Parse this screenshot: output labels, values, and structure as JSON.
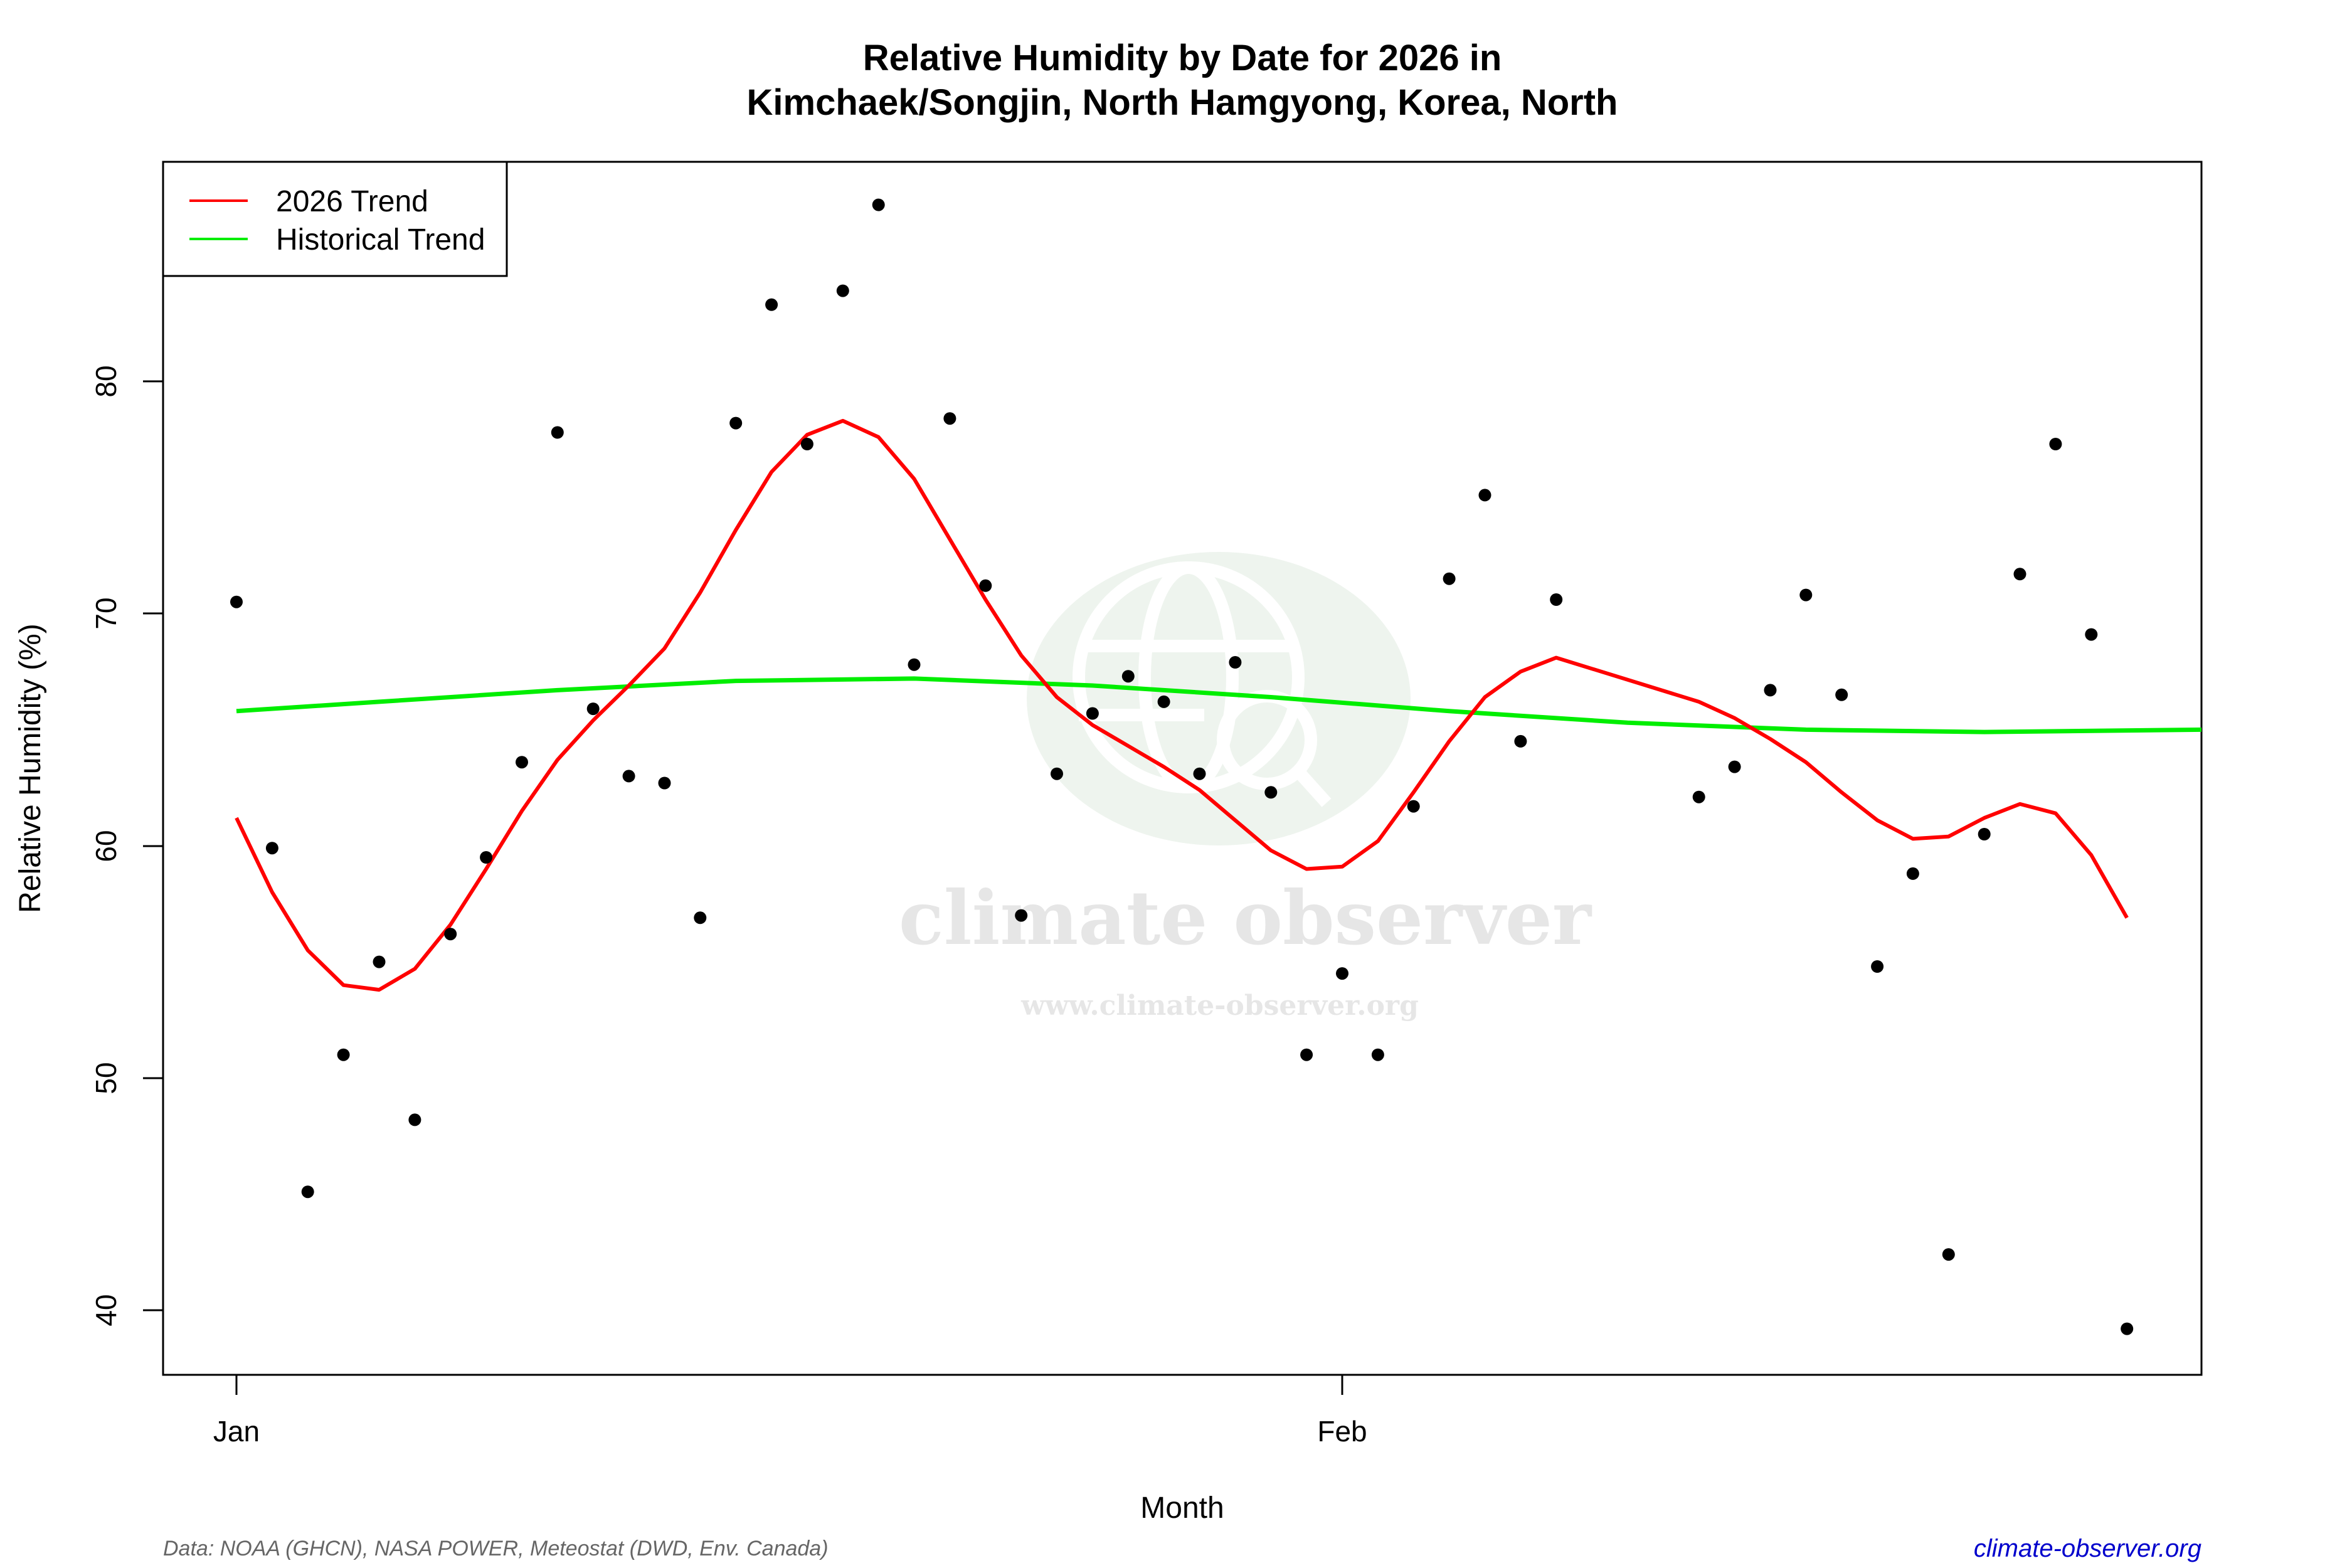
{
  "chart": {
    "title_line1": "Relative Humidity by Date for 2026 in",
    "title_line2": "Kimchaek/Songjin, North Hamgyong, Korea, North",
    "xlabel": "Month",
    "ylabel": "Relative Humidity (%)",
    "legend": [
      {
        "label": "2026 Trend",
        "color": "#ff0000"
      },
      {
        "label": "Historical Trend",
        "color": "#00ee00"
      }
    ],
    "footer_source": "Data: NOAA (GHCN), NASA POWER, Meteostat (DWD, Env. Canada)",
    "footer_site": "climate-observer.org",
    "watermark_main": "climate observer",
    "watermark_url": "www.climate-observer.org"
  },
  "chart_data": {
    "type": "scatter",
    "title": "Relative Humidity by Date for 2026 in Kimchaek/Songjin, North Hamgyong, Korea, North",
    "xlabel": "Month",
    "ylabel": "Relative Humidity (%)",
    "x_ticks": [
      {
        "label": "Jan",
        "day": 1
      },
      {
        "label": "Feb",
        "day": 32
      }
    ],
    "y_ticks": [
      40,
      50,
      60,
      70,
      80
    ],
    "xlim": [
      -1.1,
      56.1
    ],
    "ylim": [
      37.3,
      89.4
    ],
    "grid": false,
    "legend_position": "topleft",
    "colors": {
      "points": "#000000",
      "trend_2026": "#ff0000",
      "historical": "#00ee00"
    },
    "points": {
      "name": "Daily Relative Humidity 2026",
      "day": [
        1,
        2,
        3,
        4,
        5,
        6,
        7,
        8,
        9,
        10,
        11,
        12,
        13,
        14,
        15,
        16,
        17,
        18,
        19,
        20,
        21,
        22,
        23,
        24,
        25,
        26,
        27,
        28,
        29,
        30,
        31,
        32,
        33,
        34,
        35,
        36,
        37,
        38,
        42,
        43,
        44,
        45,
        46,
        47,
        48,
        49,
        50,
        51,
        52,
        53,
        54
      ],
      "date": [
        "Jan 1",
        "Jan 2",
        "Jan 3",
        "Jan 4",
        "Jan 5",
        "Jan 6",
        "Jan 7",
        "Jan 8",
        "Jan 9",
        "Jan 10",
        "Jan 11",
        "Jan 12",
        "Jan 13",
        "Jan 14",
        "Jan 15",
        "Jan 16",
        "Jan 17",
        "Jan 18",
        "Jan 19",
        "Jan 20",
        "Jan 21",
        "Jan 22",
        "Jan 23",
        "Jan 24",
        "Jan 25",
        "Jan 26",
        "Jan 27",
        "Jan 28",
        "Jan 29",
        "Jan 30",
        "Jan 31",
        "Feb 1",
        "Feb 2",
        "Feb 3",
        "Feb 4",
        "Feb 5",
        "Feb 6",
        "Feb 7",
        "Feb 11",
        "Feb 12",
        "Feb 13",
        "Feb 14",
        "Feb 15",
        "Feb 16",
        "Feb 17",
        "Feb 18",
        "Feb 19",
        "Feb 20",
        "Feb 21",
        "Feb 22",
        "Feb 23"
      ],
      "values": [
        70.5,
        59.9,
        45.1,
        51.0,
        55.0,
        48.2,
        56.2,
        59.5,
        63.6,
        77.8,
        65.9,
        63.0,
        62.7,
        56.9,
        78.2,
        83.3,
        77.3,
        83.9,
        87.6,
        67.8,
        78.4,
        71.2,
        57.0,
        63.1,
        65.7,
        67.3,
        66.2,
        63.1,
        67.9,
        62.3,
        51.0,
        54.5,
        51.0,
        61.7,
        71.5,
        75.1,
        64.5,
        70.6,
        62.1,
        63.4,
        66.7,
        70.8,
        66.5,
        54.8,
        58.8,
        42.4,
        60.5,
        71.7,
        77.3,
        69.1,
        39.2
      ]
    },
    "series": [
      {
        "name": "2026 Trend",
        "type": "line",
        "day": [
          1,
          2,
          3,
          4,
          5,
          6,
          7,
          8,
          9,
          10,
          11,
          12,
          13,
          14,
          15,
          16,
          17,
          18,
          19,
          20,
          21,
          22,
          23,
          24,
          25,
          26,
          27,
          28,
          29,
          30,
          31,
          32,
          33,
          34,
          35,
          36,
          37,
          38,
          42,
          43,
          44,
          45,
          46,
          47,
          48,
          49,
          50,
          51,
          52,
          53,
          54
        ],
        "values": [
          61.2,
          58.0,
          55.5,
          54.0,
          53.8,
          54.7,
          56.6,
          59.0,
          61.5,
          63.7,
          65.4,
          66.9,
          68.5,
          70.9,
          73.6,
          76.1,
          77.7,
          78.3,
          77.6,
          75.8,
          73.2,
          70.6,
          68.2,
          66.4,
          65.2,
          64.3,
          63.4,
          62.4,
          61.1,
          59.8,
          59.0,
          59.1,
          60.2,
          62.3,
          64.5,
          66.4,
          67.5,
          68.1,
          66.2,
          65.5,
          64.6,
          63.6,
          62.3,
          61.1,
          60.3,
          60.4,
          61.2,
          61.8,
          61.4,
          59.6,
          56.9
        ]
      },
      {
        "name": "Historical Trend",
        "type": "line",
        "day": [
          1,
          5,
          10,
          15,
          20,
          25,
          30,
          35,
          40,
          45,
          50,
          56.1
        ],
        "values": [
          65.8,
          66.2,
          66.7,
          67.1,
          67.2,
          66.9,
          66.4,
          65.8,
          65.3,
          65.0,
          64.9,
          65.0
        ]
      }
    ]
  }
}
